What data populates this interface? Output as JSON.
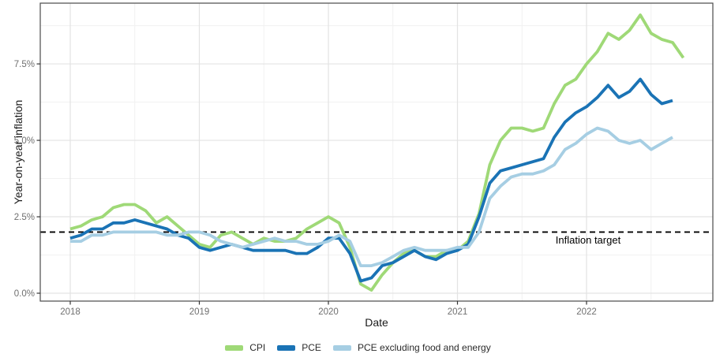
{
  "chart_data": {
    "type": "line",
    "xlabel": "Date",
    "ylabel": "Year-on-year inflation",
    "x_unit": "month",
    "x_start": "2018-01",
    "x_tick_labels": [
      "2018",
      "2019",
      "2020",
      "2021",
      "2022"
    ],
    "x_tick_month_index": [
      0,
      12,
      24,
      36,
      48
    ],
    "x_minor_month_index": [
      6,
      18,
      30,
      42,
      54
    ],
    "y_tick_labels": [
      "0.0%",
      "2.5%",
      "5.0%",
      "7.5%"
    ],
    "y_tick_values": [
      0,
      2.5,
      5.0,
      7.5
    ],
    "y_minor_values": [
      1.25,
      3.75,
      6.25,
      8.75
    ],
    "ylim": [
      -0.3,
      9.5
    ],
    "grid": "on",
    "legend_position": "bottom",
    "reference_line": {
      "value": 2.0,
      "label": "Inflation target",
      "style": "dashed",
      "color": "#000000"
    },
    "series": [
      {
        "name": "CPI",
        "color": "#9FD977",
        "values": [
          2.1,
          2.2,
          2.4,
          2.5,
          2.8,
          2.9,
          2.9,
          2.7,
          2.3,
          2.5,
          2.2,
          1.9,
          1.6,
          1.5,
          1.9,
          2.0,
          1.8,
          1.6,
          1.8,
          1.7,
          1.7,
          1.8,
          2.1,
          2.3,
          2.5,
          2.3,
          1.5,
          0.3,
          0.1,
          0.6,
          1.0,
          1.3,
          1.4,
          1.2,
          1.2,
          1.4,
          1.4,
          1.7,
          2.6,
          4.2,
          5.0,
          5.4,
          5.4,
          5.3,
          5.4,
          6.2,
          6.8,
          7.0,
          7.5,
          7.9,
          8.5,
          8.3,
          8.6,
          9.1,
          8.5,
          8.3,
          8.2,
          7.7
        ]
      },
      {
        "name": "PCE",
        "color": "#1A73B5",
        "values": [
          1.8,
          1.9,
          2.1,
          2.1,
          2.3,
          2.3,
          2.4,
          2.3,
          2.2,
          2.1,
          1.9,
          1.8,
          1.5,
          1.4,
          1.5,
          1.6,
          1.5,
          1.4,
          1.4,
          1.4,
          1.4,
          1.3,
          1.3,
          1.5,
          1.8,
          1.8,
          1.3,
          0.4,
          0.5,
          0.9,
          1.0,
          1.2,
          1.4,
          1.2,
          1.1,
          1.3,
          1.4,
          1.6,
          2.5,
          3.6,
          4.0,
          4.1,
          4.2,
          4.3,
          4.4,
          5.1,
          5.6,
          5.9,
          6.1,
          6.4,
          6.8,
          6.4,
          6.6,
          7.0,
          6.5,
          6.2,
          6.3
        ]
      },
      {
        "name": "PCE excluding food and energy",
        "color": "#A6CEE3",
        "values": [
          1.7,
          1.7,
          1.9,
          1.9,
          2.0,
          2.0,
          2.0,
          2.0,
          2.0,
          1.9,
          1.9,
          2.0,
          2.0,
          1.9,
          1.7,
          1.6,
          1.5,
          1.6,
          1.7,
          1.8,
          1.7,
          1.7,
          1.6,
          1.6,
          1.7,
          1.9,
          1.7,
          0.9,
          0.9,
          1.0,
          1.2,
          1.4,
          1.5,
          1.4,
          1.4,
          1.4,
          1.5,
          1.5,
          2.0,
          3.1,
          3.5,
          3.8,
          3.9,
          3.9,
          4.0,
          4.2,
          4.7,
          4.9,
          5.2,
          5.4,
          5.3,
          5.0,
          4.9,
          5.0,
          4.7,
          4.9,
          5.1
        ]
      }
    ]
  }
}
